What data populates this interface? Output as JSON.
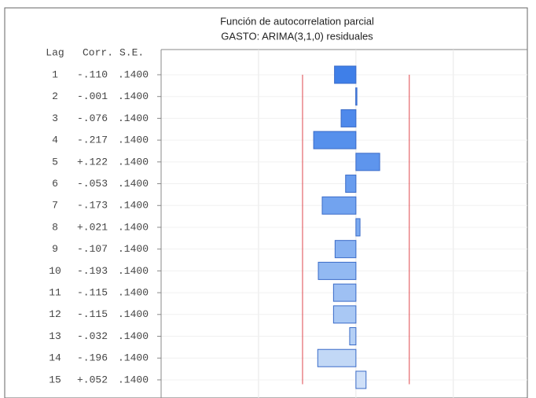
{
  "chart_data": {
    "type": "bar",
    "orientation": "horizontal",
    "title": "Función de autocorrelation parcial",
    "subtitle": "GASTO: ARIMA(3,1,0) residuales",
    "columns": [
      "Lag",
      "Corr.",
      "S.E."
    ],
    "categories": [
      "1",
      "2",
      "3",
      "4",
      "5",
      "6",
      "7",
      "8",
      "9",
      "10",
      "11",
      "12",
      "13",
      "14",
      "15"
    ],
    "values": [
      -0.11,
      -0.001,
      -0.076,
      -0.217,
      0.122,
      -0.053,
      -0.173,
      0.021,
      -0.107,
      -0.193,
      -0.115,
      -0.115,
      -0.032,
      -0.196,
      0.052
    ],
    "value_labels": [
      "-.110",
      "-.001",
      "-.076",
      "-.217",
      "+.122",
      "-.053",
      "-.173",
      "+.021",
      "-.107",
      "-.193",
      "-.115",
      "-.115",
      "-.032",
      "-.196",
      "+.052"
    ],
    "se": [
      0.14,
      0.14,
      0.14,
      0.14,
      0.14,
      0.14,
      0.14,
      0.14,
      0.14,
      0.14,
      0.14,
      0.14,
      0.14,
      0.14,
      0.14
    ],
    "se_labels": [
      ".1400",
      ".1400",
      ".1400",
      ".1400",
      ".1400",
      ".1400",
      ".1400",
      ".1400",
      ".1400",
      ".1400",
      ".1400",
      ".1400",
      ".1400",
      ".1400",
      ".1400"
    ],
    "colors": [
      "#3f7fe8",
      "#4683ea",
      "#4e89eb",
      "#5690ec",
      "#5e95ed",
      "#689cee",
      "#72a3ef",
      "#7caaf0",
      "#87b1f1",
      "#92b9f2",
      "#9ec0f3",
      "#a9c8f4",
      "#b5d0f5",
      "#c2d8f6",
      "#cfe0f8"
    ],
    "xlim": [
      -1,
      0.88
    ],
    "grid_x": [
      -0.5,
      0,
      0.5
    ],
    "limits": [
      -0.274,
      0.274
    ],
    "limit_color": "#e0474c"
  }
}
